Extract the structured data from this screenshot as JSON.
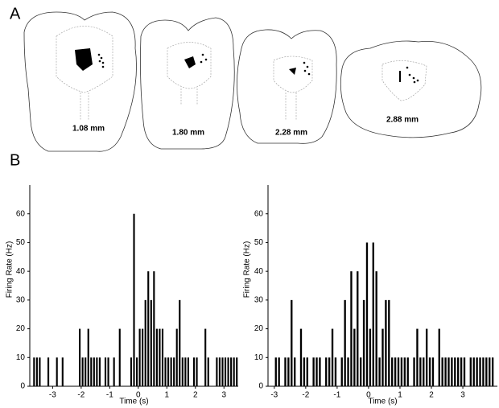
{
  "panel_a": {
    "label": "A",
    "sections": [
      "1.08 mm",
      "1.80 mm",
      "2.28 mm",
      "2.88 mm"
    ]
  },
  "panel_b": {
    "label": "B"
  },
  "chart_data": [
    {
      "type": "histogram",
      "x_label": "Time (s)",
      "y_label": "Firing Rate (Hz)",
      "color": "#000000",
      "bins": [
        -3.7,
        -3.6,
        -3.5,
        -3.4,
        -3.3,
        -3.2,
        -3.1,
        -3.0,
        -2.9,
        -2.8,
        -2.7,
        -2.6,
        -2.5,
        -2.4,
        -2.3,
        -2.2,
        -2.1,
        -2.0,
        -1.9,
        -1.8,
        -1.7,
        -1.6,
        -1.5,
        -1.4,
        -1.3,
        -1.2,
        -1.1,
        -1.0,
        -0.9,
        -0.8,
        -0.7,
        -0.6,
        -0.5,
        -0.4,
        -0.3,
        -0.2,
        -0.1,
        0,
        0.1,
        0.2,
        0.3,
        0.4,
        0.5,
        0.6,
        0.7,
        0.8,
        0.9,
        1.0,
        1.1,
        1.2,
        1.3,
        1.4,
        1.5,
        1.6,
        1.7,
        1.8,
        1.9,
        2.0,
        2.1,
        2.2,
        2.3,
        2.4,
        2.5,
        2.6,
        2.7,
        2.8,
        2.9,
        3.0,
        3.1,
        3.2,
        3.3,
        3.4,
        3.5
      ],
      "values": [
        10,
        10,
        10,
        0,
        0,
        10,
        0,
        0,
        10,
        0,
        10,
        0,
        0,
        0,
        0,
        0,
        20,
        10,
        10,
        20,
        10,
        10,
        10,
        10,
        0,
        10,
        10,
        0,
        10,
        0,
        20,
        0,
        0,
        0,
        10,
        60,
        10,
        20,
        20,
        30,
        40,
        30,
        40,
        20,
        20,
        20,
        10,
        10,
        10,
        10,
        20,
        30,
        10,
        10,
        10,
        0,
        10,
        10,
        0,
        0,
        20,
        10,
        0,
        0,
        10,
        10,
        10,
        10,
        10,
        10,
        10,
        10
      ],
      "xlim": [
        -3.8,
        3.5
      ],
      "xticks": [
        -3,
        -2,
        -1,
        0,
        1,
        2,
        3
      ],
      "ylim": [
        0,
        70
      ],
      "yticks": [
        0,
        10,
        20,
        30,
        40,
        50,
        60
      ]
    },
    {
      "type": "histogram",
      "x_label": "Time (s)",
      "y_label": "Firing Rate (Hz)",
      "color": "#000000",
      "bins": [
        -3.0,
        -2.9,
        -2.8,
        -2.7,
        -2.6,
        -2.5,
        -2.4,
        -2.3,
        -2.2,
        -2.1,
        -2.0,
        -1.9,
        -1.8,
        -1.7,
        -1.6,
        -1.5,
        -1.4,
        -1.3,
        -1.2,
        -1.1,
        -1.0,
        -0.9,
        -0.8,
        -0.7,
        -0.6,
        -0.5,
        -0.4,
        -0.3,
        -0.2,
        -0.1,
        0,
        0.1,
        0.2,
        0.3,
        0.4,
        0.5,
        0.6,
        0.7,
        0.8,
        0.9,
        1.0,
        1.1,
        1.2,
        1.3,
        1.4,
        1.5,
        1.6,
        1.7,
        1.8,
        1.9,
        2.0,
        2.1,
        2.2,
        2.3,
        2.4,
        2.5,
        2.6,
        2.7,
        2.8,
        2.9,
        3.0,
        3.1,
        3.2,
        3.3,
        3.4,
        3.5,
        3.6,
        3.7,
        3.8,
        3.9,
        4.0
      ],
      "values": [
        10,
        10,
        0,
        10,
        10,
        30,
        10,
        0,
        20,
        10,
        10,
        0,
        10,
        10,
        10,
        0,
        10,
        10,
        20,
        10,
        0,
        10,
        30,
        10,
        40,
        20,
        40,
        10,
        30,
        50,
        20,
        50,
        40,
        10,
        20,
        30,
        30,
        10,
        10,
        10,
        10,
        10,
        10,
        0,
        10,
        20,
        10,
        10,
        20,
        10,
        10,
        0,
        20,
        10,
        10,
        10,
        10,
        10,
        10,
        10,
        10,
        0,
        10,
        10,
        10,
        10,
        10,
        10,
        10,
        10
      ],
      "xlim": [
        -3.2,
        4.1
      ],
      "xticks": [
        -3,
        -2,
        -1,
        0,
        1,
        2,
        3
      ],
      "ylim": [
        0,
        70
      ],
      "yticks": [
        0,
        10,
        20,
        30,
        40,
        50,
        60
      ]
    }
  ]
}
